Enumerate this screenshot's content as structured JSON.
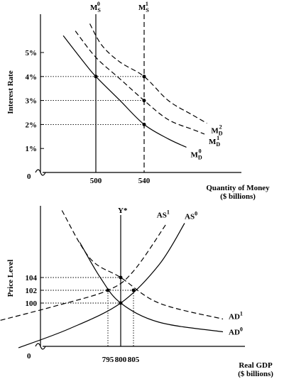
{
  "chart_data": [
    {
      "type": "line",
      "ylabel": "Interest Rate",
      "xlabel_line1": "Quantity of Money",
      "xlabel_line2": "($ billions)",
      "origin_label": "0",
      "y_ticks": [
        "1%",
        "2%",
        "3%",
        "4%",
        "5%"
      ],
      "x_ticks": [
        "500",
        "540"
      ],
      "supply": [
        {
          "name_main": "M",
          "name_sub": "S",
          "name_sup": "0",
          "x": 500
        },
        {
          "name_main": "M",
          "name_sub": "S",
          "name_sup": "1",
          "x": 540,
          "dashed": true
        }
      ],
      "demand": [
        {
          "name_main": "M",
          "name_sub": "D",
          "name_sup": "0",
          "dashed": false,
          "points": [
            [
              473,
              5.7
            ],
            [
              490,
              4.6
            ],
            [
              500,
              4.0
            ],
            [
              520,
              3.0
            ],
            [
              540,
              2.0
            ],
            [
              560,
              1.4
            ],
            [
              575,
              1.05
            ]
          ]
        },
        {
          "name_main": "M",
          "name_sub": "D",
          "name_sup": "1",
          "dashed": true,
          "points": [
            [
              483,
              5.9
            ],
            [
              500,
              4.8
            ],
            [
              520,
              3.9
            ],
            [
              540,
              3.0
            ],
            [
              560,
              2.2
            ],
            [
              580,
              1.8
            ],
            [
              590,
              1.6
            ]
          ]
        },
        {
          "name_main": "M",
          "name_sub": "D",
          "name_sup": "2",
          "dashed": true,
          "points": [
            [
              495,
              6.2
            ],
            [
              505,
              5.3
            ],
            [
              520,
              4.6
            ],
            [
              540,
              4.0
            ],
            [
              560,
              3.0
            ],
            [
              580,
              2.4
            ],
            [
              592,
              2.05
            ]
          ]
        }
      ],
      "equilibria": [
        [
          500,
          4.0
        ],
        [
          540,
          4.0
        ],
        [
          540,
          3.0
        ],
        [
          540,
          2.0
        ]
      ]
    },
    {
      "type": "line",
      "ylabel": "Price Level",
      "xlabel_line1": "Real GDP",
      "xlabel_line2": "($ billions)",
      "origin_label": "0",
      "y_ticks": [
        "100",
        "102",
        "104"
      ],
      "x_ticks": [
        "795",
        "800",
        "805"
      ],
      "lras": {
        "label": "Y*",
        "x": 800
      },
      "curves": [
        {
          "name_main": "AS",
          "name_sup": "0",
          "dashed": false,
          "points": [
            [
              760,
              93
            ],
            [
              780,
              96
            ],
            [
              800,
              100
            ],
            [
              815,
              106
            ],
            [
              825,
              112.5
            ]
          ]
        },
        {
          "name_main": "AS",
          "name_sup": "1",
          "dashed": true,
          "points": [
            [
              750,
              97
            ],
            [
              775,
              99.6
            ],
            [
              795,
              102
            ],
            [
              805,
              105
            ],
            [
              818,
              112.5
            ]
          ]
        },
        {
          "name_main": "AD",
          "name_sup": "0",
          "dashed": false,
          "points": [
            [
              784,
              109.5
            ],
            [
              792,
              104
            ],
            [
              800,
              100
            ],
            [
              815,
              97
            ],
            [
              840,
              95.5
            ]
          ]
        },
        {
          "name_main": "AD",
          "name_sup": "1",
          "dashed": true,
          "points": [
            [
              777,
              114.5
            ],
            [
              788,
              107
            ],
            [
              800,
              104
            ],
            [
              815,
              100
            ],
            [
              840,
              97.5
            ]
          ]
        }
      ],
      "equilibria": [
        [
          800,
          100
        ],
        [
          795,
          102
        ],
        [
          805,
          102
        ],
        [
          800,
          104
        ]
      ]
    }
  ]
}
